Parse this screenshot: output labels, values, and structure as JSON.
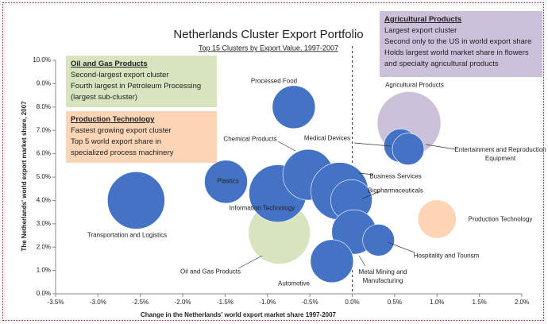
{
  "chart_data": {
    "type": "bubble",
    "title": "Netherlands Cluster Export Portfolio",
    "subtitle": "Top 15 Clusters by Export Value, 1997-2007",
    "x_label": "Change in the Netherlands' world export market share 1997-2007",
    "y_label": "The Netherlands' world export market share, 2007",
    "xlim": [
      -3.5,
      2.0
    ],
    "ylim": [
      0,
      10
    ],
    "xticks": [
      {
        "value": -3.5,
        "label": "-3.5%"
      },
      {
        "value": -3.0,
        "label": "-3.0%"
      },
      {
        "value": -2.5,
        "label": "-2.5%"
      },
      {
        "value": -2.0,
        "label": "-2.0%"
      },
      {
        "value": -1.5,
        "label": "-1.5%"
      },
      {
        "value": -1.0,
        "label": "-1.0%"
      },
      {
        "value": -0.5,
        "label": "-0.5%"
      },
      {
        "value": 0,
        "label": "0.0%"
      },
      {
        "value": 0.5,
        "label": "0.5%"
      },
      {
        "value": 1.0,
        "label": "1.0%"
      },
      {
        "value": 1.5,
        "label": "1.5%"
      },
      {
        "value": 2.0,
        "label": "2.0%"
      }
    ],
    "yticks": [
      {
        "value": 0,
        "label": "0.0%"
      },
      {
        "value": 1,
        "label": "1.0%"
      },
      {
        "value": 2,
        "label": "2.0%"
      },
      {
        "value": 3,
        "label": "3.0%"
      },
      {
        "value": 4,
        "label": "4.0%"
      },
      {
        "value": 5,
        "label": "5.0%"
      },
      {
        "value": 6,
        "label": "6.0%"
      },
      {
        "value": 7,
        "label": "7.0%"
      },
      {
        "value": 8,
        "label": "8.0%"
      },
      {
        "value": 9,
        "label": "9.0%"
      },
      {
        "value": 10,
        "label": "10.0%"
      }
    ],
    "grid": false,
    "points": [
      {
        "name": "Agricultural Products",
        "x": 0.67,
        "y": 7.3,
        "size": 160,
        "color": "#ccc0da"
      },
      {
        "name": "Oil and Gas Products",
        "x": -0.86,
        "y": 2.6,
        "size": 152,
        "color": "#d7e4bd"
      },
      {
        "name": "Production Technology",
        "x": 1.0,
        "y": 3.2,
        "size": 58,
        "color": "#fbd5b5"
      },
      {
        "name": "Transportation and Logistics",
        "x": -2.55,
        "y": 4.0,
        "size": 130,
        "color": "#4472c4"
      },
      {
        "name": "Plastics",
        "x": -1.49,
        "y": 4.8,
        "size": 73,
        "color": "#4472c4"
      },
      {
        "name": "Processed Food",
        "x": -0.69,
        "y": 8.0,
        "size": 73,
        "color": "#4472c4"
      },
      {
        "name": "Information Technology",
        "x": -0.88,
        "y": 4.3,
        "size": 130,
        "color": "#4472c4"
      },
      {
        "name": "Chemical Products",
        "x": -0.52,
        "y": 5.1,
        "size": 102,
        "color": "#4472c4"
      },
      {
        "name": "Business Services",
        "x": -0.15,
        "y": 4.4,
        "size": 130,
        "color": "#4472c4"
      },
      {
        "name": "Biopharmaceuticals",
        "x": -0.01,
        "y": 4.0,
        "size": 68,
        "color": "#4472c4"
      },
      {
        "name": "Metal Mining and Manufacturing",
        "x": 0.02,
        "y": 2.65,
        "size": 78,
        "color": "#4472c4"
      },
      {
        "name": "Automotive",
        "x": -0.24,
        "y": 1.4,
        "size": 73,
        "color": "#4472c4"
      },
      {
        "name": "Hospitality and Tourism",
        "x": 0.31,
        "y": 2.3,
        "size": 40,
        "color": "#4472c4"
      },
      {
        "name": "Medical Devices",
        "x": 0.57,
        "y": 6.35,
        "size": 44,
        "color": "#4472c4"
      },
      {
        "name": "Entertainment and Reproduction Equipment",
        "x": 0.66,
        "y": 6.2,
        "size": 40,
        "color": "#4472c4"
      }
    ],
    "annotations": [
      {
        "title": "Oil and Gas Products",
        "lines": [
          "Second-largest export cluster",
          "Fourth largest in Petroleum Processing",
          "(largest sub-cluster)"
        ],
        "color": "#d7e4bd"
      },
      {
        "title": "Production Technology",
        "lines": [
          "Fastest growing export cluster",
          "Top 5 world export share in",
          "specialized process machinery"
        ],
        "color": "#fbd5b5"
      },
      {
        "title": "Agricultural Products",
        "lines": [
          "Largest export cluster",
          "Second only to the US in world export share",
          "Holds largest world market share in flowers",
          "and specialty agricultural products"
        ],
        "color": "#ccc0da"
      }
    ]
  }
}
